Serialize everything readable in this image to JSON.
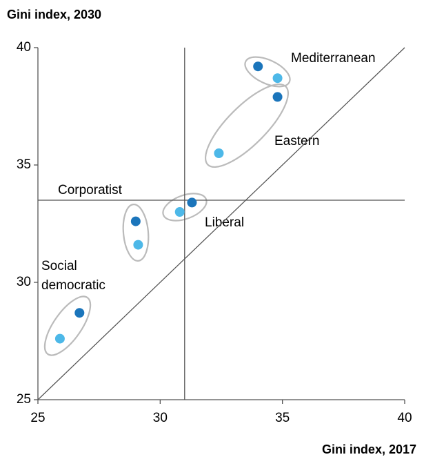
{
  "chart_data": {
    "type": "scatter",
    "y_label": "Gini index, 2030",
    "x_label": "Gini index, 2017",
    "xlim": [
      25,
      40
    ],
    "xticks": [
      25,
      30,
      35,
      40
    ],
    "ylim": [
      25,
      40
    ],
    "yticks": [
      25,
      30,
      35,
      40
    ],
    "reference_lines": {
      "x": 31,
      "y": 33.5
    },
    "diagonal": true,
    "series": [
      {
        "color": "#1b75bb",
        "x": [
          34.0,
          34.8,
          31.3,
          29.0,
          26.7
        ],
        "values": [
          39.2,
          37.9,
          33.4,
          32.6,
          28.7
        ]
      },
      {
        "color": "#4db8e8",
        "x": [
          34.8,
          32.4,
          30.8,
          29.1,
          25.9
        ],
        "values": [
          38.7,
          35.5,
          33.0,
          31.6,
          27.6
        ]
      }
    ],
    "annotations": [
      {
        "text": [
          "Mediterranean"
        ]
      },
      {
        "text": [
          "Eastern"
        ]
      },
      {
        "text": [
          "Corporatist"
        ]
      },
      {
        "text": [
          "Liberal"
        ]
      },
      {
        "text": [
          "Social",
          "democratic"
        ]
      }
    ]
  }
}
